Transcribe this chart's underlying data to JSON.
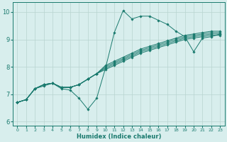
{
  "xlabel": "Humidex (Indice chaleur)",
  "ylabel": "",
  "bg_color": "#d8eeed",
  "line_color": "#1a7a6e",
  "xlim": [
    -0.5,
    23.5
  ],
  "ylim": [
    5.85,
    10.35
  ],
  "xticks": [
    0,
    1,
    2,
    3,
    4,
    5,
    6,
    7,
    8,
    9,
    10,
    11,
    12,
    13,
    14,
    15,
    16,
    17,
    18,
    19,
    20,
    21,
    22,
    23
  ],
  "yticks": [
    6,
    7,
    8,
    9,
    10
  ],
  "lines": [
    [
      6.7,
      6.8,
      7.2,
      7.3,
      7.4,
      7.2,
      7.15,
      6.85,
      6.45,
      6.85,
      7.95,
      9.25,
      10.05,
      9.75,
      9.85,
      9.85,
      9.7,
      9.55,
      9.3,
      9.1,
      8.55,
      9.05,
      9.1,
      9.2
    ],
    [
      6.7,
      6.8,
      7.2,
      7.35,
      7.4,
      7.25,
      7.25,
      7.35,
      7.55,
      7.75,
      7.9,
      8.05,
      8.2,
      8.35,
      8.5,
      8.6,
      8.7,
      8.8,
      8.9,
      9.0,
      9.05,
      9.1,
      9.15,
      9.15
    ],
    [
      6.7,
      6.8,
      7.2,
      7.35,
      7.4,
      7.25,
      7.25,
      7.35,
      7.55,
      7.75,
      7.95,
      8.1,
      8.25,
      8.4,
      8.55,
      8.65,
      8.75,
      8.85,
      8.95,
      9.05,
      9.1,
      9.15,
      9.2,
      9.2
    ],
    [
      6.7,
      6.8,
      7.2,
      7.35,
      7.4,
      7.25,
      7.25,
      7.35,
      7.55,
      7.75,
      8.0,
      8.15,
      8.3,
      8.45,
      8.6,
      8.7,
      8.8,
      8.9,
      9.0,
      9.1,
      9.15,
      9.2,
      9.25,
      9.25
    ],
    [
      6.7,
      6.8,
      7.2,
      7.35,
      7.4,
      7.25,
      7.25,
      7.35,
      7.55,
      7.75,
      8.05,
      8.2,
      8.35,
      8.5,
      8.65,
      8.75,
      8.85,
      8.95,
      9.05,
      9.15,
      9.2,
      9.25,
      9.3,
      9.3
    ]
  ],
  "grid_color": "#b8d4d0",
  "marker": "D",
  "markersize": 1.8,
  "linewidth": 0.7,
  "tick_fontsize_x": 4.5,
  "tick_fontsize_y": 6.0,
  "xlabel_fontsize": 6.0
}
